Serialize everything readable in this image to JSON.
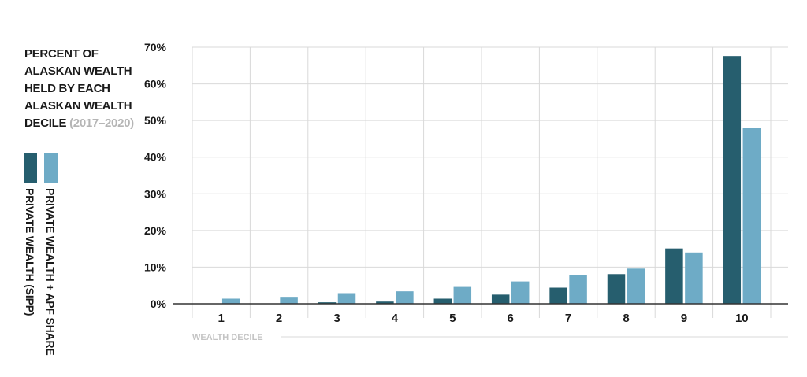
{
  "chart_data": {
    "type": "bar",
    "title": "PERCENT OF ALASKAN WEALTH HELD BY EACH ALASKAN WEALTH DECILE",
    "subtitle": "(2017–2020)",
    "xlabel": "WEALTH DECILE",
    "ylabel": "",
    "categories": [
      "1",
      "2",
      "3",
      "4",
      "5",
      "6",
      "7",
      "8",
      "9",
      "10"
    ],
    "series": [
      {
        "name": "PRIVATE WEALTH (SIPP)",
        "color": "#265e6e",
        "values": [
          0,
          0,
          0.4,
          0.6,
          1.4,
          2.5,
          4.4,
          8.1,
          15.1,
          67.6
        ]
      },
      {
        "name": "PRIVATE WEALTH + APF SHARE",
        "color": "#6eabc6",
        "values": [
          1.4,
          1.9,
          2.9,
          3.4,
          4.6,
          6.1,
          7.9,
          9.6,
          14.0,
          47.9
        ]
      }
    ],
    "ylim": [
      0,
      70
    ],
    "yticks": [
      "0%",
      "10%",
      "20%",
      "30%",
      "40%",
      "50%",
      "60%",
      "70%"
    ],
    "grid": true,
    "legend_position": "left"
  }
}
